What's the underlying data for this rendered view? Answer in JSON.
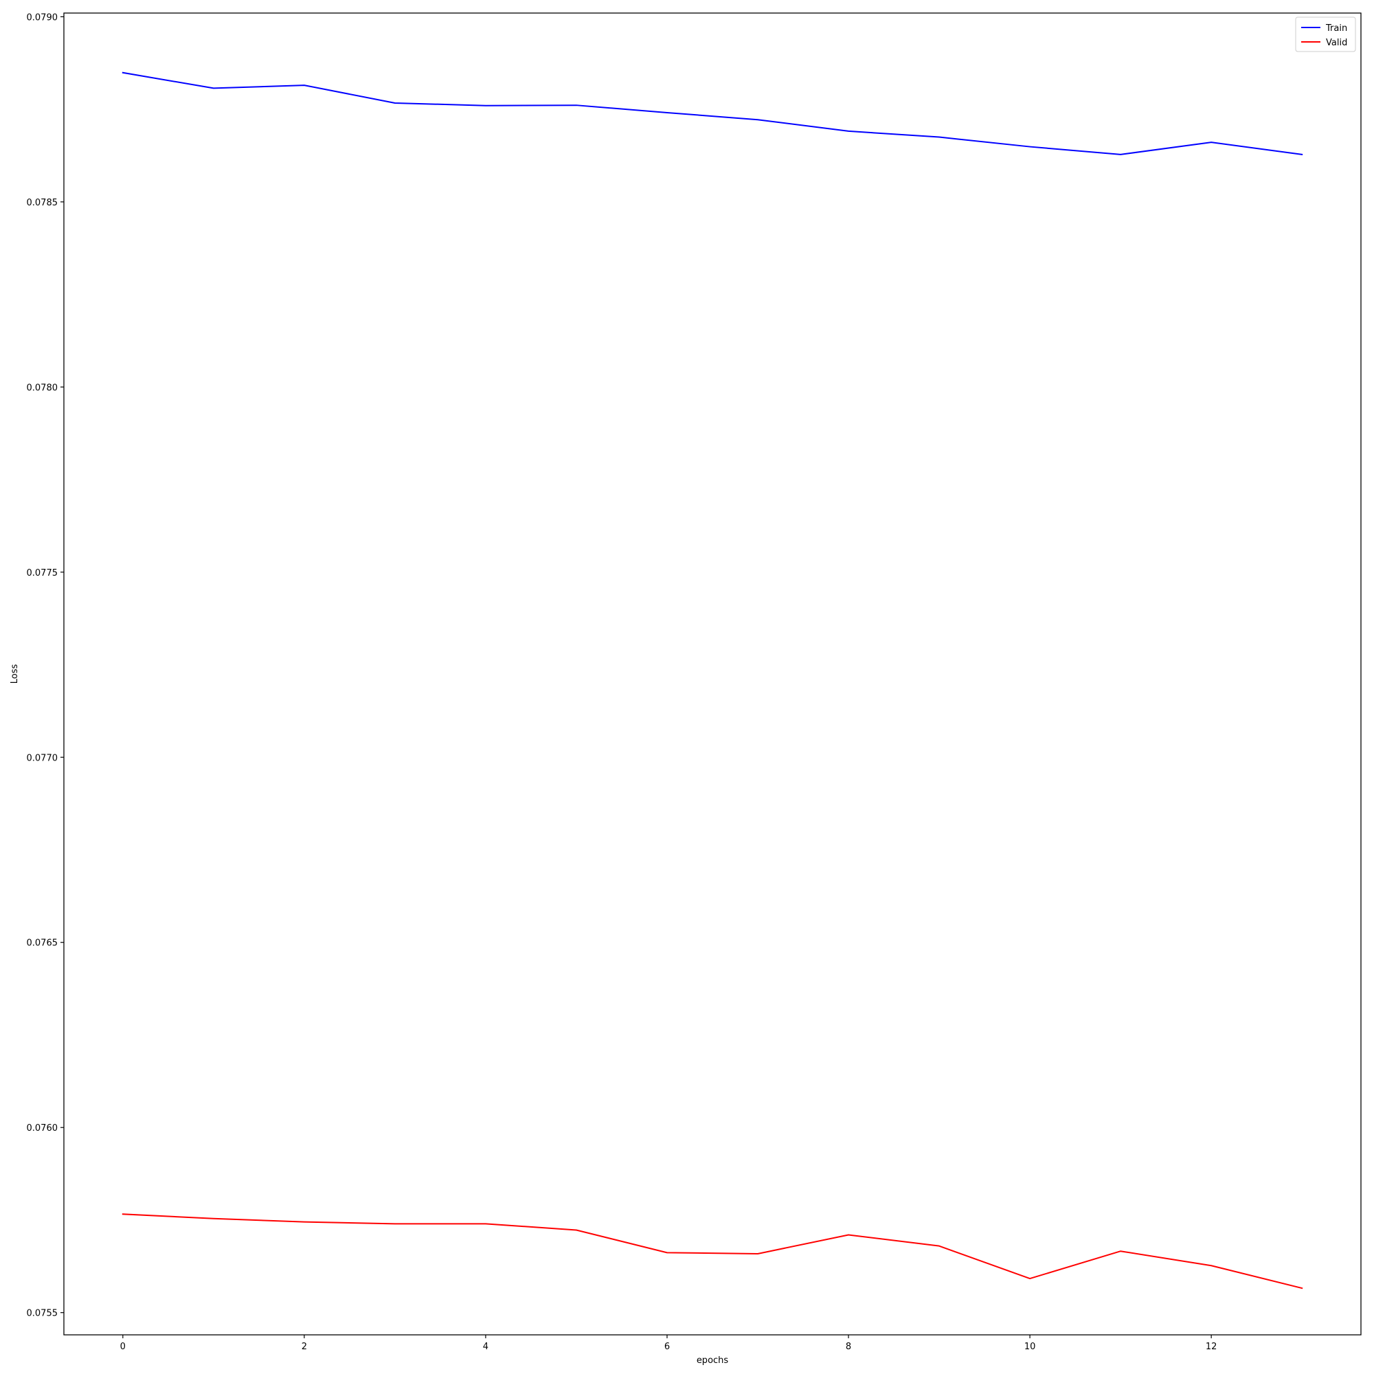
{
  "chart_data": {
    "type": "line",
    "xlabel": "epochs",
    "ylabel": "Loss",
    "xlim": [
      -0.65,
      13.65
    ],
    "ylim": [
      0.07544,
      0.07901
    ],
    "xticks": [
      0,
      2,
      4,
      6,
      8,
      10,
      12
    ],
    "xtick_labels": [
      "0",
      "2",
      "4",
      "6",
      "8",
      "10",
      "12"
    ],
    "yticks": [
      0.0755,
      0.076,
      0.0765,
      0.077,
      0.0775,
      0.078,
      0.0785,
      0.079
    ],
    "ytick_labels": [
      "0.0755",
      "0.0760",
      "0.0765",
      "0.0770",
      "0.0775",
      "0.0780",
      "0.0785",
      "0.0790"
    ],
    "grid": false,
    "legend_position": "top-right",
    "x": [
      0,
      1,
      2,
      3,
      4,
      5,
      6,
      7,
      8,
      9,
      10,
      11,
      12,
      13
    ],
    "series": [
      {
        "name": "Train",
        "color": "#0000ff",
        "values": [
          0.078849,
          0.078807,
          0.078815,
          0.078767,
          0.07876,
          0.078761,
          0.078741,
          0.078722,
          0.078691,
          0.078675,
          0.078649,
          0.078628,
          0.078661,
          0.078628
        ]
      },
      {
        "name": "Valid",
        "color": "#ff0000",
        "values": [
          0.075766,
          0.075754,
          0.075745,
          0.07574,
          0.07574,
          0.075723,
          0.075662,
          0.075659,
          0.07571,
          0.07568,
          0.075592,
          0.075666,
          0.075627,
          0.075566
        ]
      }
    ]
  }
}
